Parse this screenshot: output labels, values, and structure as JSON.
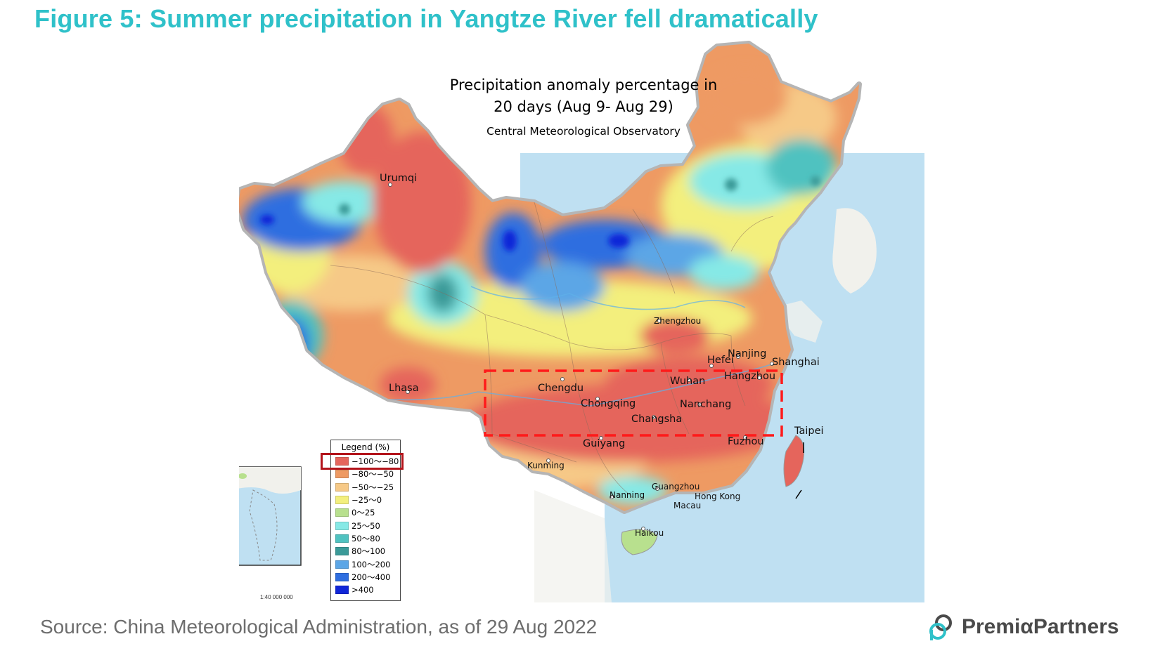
{
  "figure": {
    "title": "Figure 5: Summer precipitation in Yangtze River fell dramatically",
    "map_title_line1": "Precipitation anomaly percentage in",
    "map_title_line2": "20 days (Aug 9- Aug 29)",
    "map_subtitle": "Central Meteorological Observatory",
    "source": "Source: China Meteorological Administration, as of 29 Aug 2022",
    "brand": "PremiαPartners",
    "title_color": "#2fc1c9"
  },
  "cities": [
    {
      "id": "urumqi",
      "name": "Urumqi"
    },
    {
      "id": "lhasa",
      "name": "Lhasa"
    },
    {
      "id": "zhengzhou",
      "name": "Zhengzhou"
    },
    {
      "id": "nanjing",
      "name": "Nanjing"
    },
    {
      "id": "hefei",
      "name": "Hefei"
    },
    {
      "id": "shanghai",
      "name": "Shanghai"
    },
    {
      "id": "hangzhou",
      "name": "Hangzhou"
    },
    {
      "id": "wuhan",
      "name": "Wuhan"
    },
    {
      "id": "chengdu",
      "name": "Chengdu"
    },
    {
      "id": "chongqing",
      "name": "Chongqing"
    },
    {
      "id": "nanchang",
      "name": "Nanchang"
    },
    {
      "id": "changsha",
      "name": "Changsha"
    },
    {
      "id": "guiyang",
      "name": "Guiyang"
    },
    {
      "id": "fuzhou",
      "name": "Fuzhou"
    },
    {
      "id": "taipei",
      "name": "Taipei"
    },
    {
      "id": "kunming",
      "name": "Kunming"
    },
    {
      "id": "guangzhou",
      "name": "Guangzhou"
    },
    {
      "id": "nanning",
      "name": "Nanning"
    },
    {
      "id": "hongkong",
      "name": "Hong Kong"
    },
    {
      "id": "macau",
      "name": "Macau"
    },
    {
      "id": "haikou",
      "name": "Haikou"
    }
  ],
  "legend": {
    "title": "Legend (%)",
    "highlighted_class": "−100～−80",
    "highlight_color": "#b3141b",
    "items": [
      {
        "label": "−100～−80",
        "color": "#e5655c"
      },
      {
        "label": "−80～−50",
        "color": "#ee9a63"
      },
      {
        "label": "−50～−25",
        "color": "#f6c987"
      },
      {
        "label": "−25～0",
        "color": "#f3ef7d"
      },
      {
        "label": "0～25",
        "color": "#b8e08e"
      },
      {
        "label": "25～50",
        "color": "#86e9e6"
      },
      {
        "label": "50～80",
        "color": "#4fc2c0"
      },
      {
        "label": "80～100",
        "color": "#3b9a98"
      },
      {
        "label": "100～200",
        "color": "#5ca6e6"
      },
      {
        "label": "200～400",
        "color": "#2f6ee0"
      },
      {
        "label": ">400",
        "color": "#1026d8"
      }
    ]
  },
  "inset": {
    "scale": "1:40 000 000"
  },
  "highlight_region": {
    "description_color": "#ff1a1a"
  }
}
